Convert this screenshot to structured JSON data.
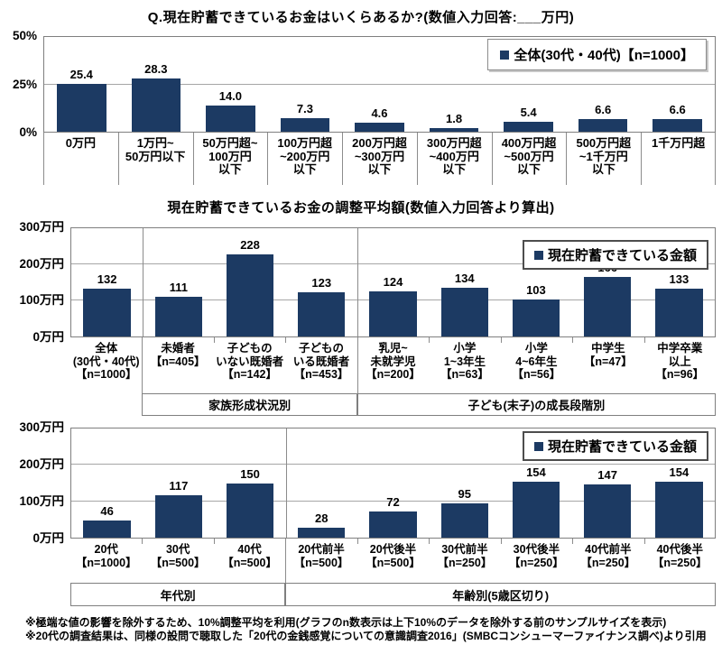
{
  "colors": {
    "bar": "#1c3a63",
    "grid": "#a6a6a6",
    "axis": "#7f7f7f"
  },
  "footnotes": [
    "※極端な値の影響を除外するため、10%調整平均を利用(グラフのn数表示は上下10%のデータを除外する前のサンプルサイズを表示)",
    "※20代の調査結果は、同様の設問で聴取した「20代の金銭感覚についての意識調査2016」(SMBCコンシューマーファイナンス調べ)より引用"
  ],
  "chart_data": [
    {
      "type": "bar",
      "title": "Q.現在貯蓄できているお金はいくらあるか?(数値入力回答:___万円)",
      "legend": "全体(30代・40代)【n=1000】",
      "ylim": [
        0,
        50
      ],
      "yticks": [
        {
          "v": 50,
          "label": "50%"
        },
        {
          "v": 25,
          "label": "25%"
        },
        {
          "v": 0,
          "label": "0%"
        }
      ],
      "categories": [
        [
          "0万円"
        ],
        [
          "1万円~",
          "50万円以下"
        ],
        [
          "50万円超~",
          "100万円",
          "以下"
        ],
        [
          "100万円超",
          "~200万円",
          "以下"
        ],
        [
          "200万円超",
          "~300万円",
          "以下"
        ],
        [
          "300万円超",
          "~400万円",
          "以下"
        ],
        [
          "400万円超",
          "~500万円",
          "以下"
        ],
        [
          "500万円超",
          "~1千万円",
          "以下"
        ],
        [
          "1千万円超"
        ]
      ],
      "values": [
        25.4,
        28.3,
        14.0,
        7.3,
        4.6,
        1.8,
        5.4,
        6.6,
        6.6
      ],
      "value_labels": [
        "25.4",
        "28.3",
        "14.0",
        "7.3",
        "4.6",
        "1.8",
        "5.4",
        "6.6",
        "6.6"
      ],
      "groups": [],
      "group_dividers": []
    },
    {
      "type": "bar",
      "title": "現在貯蓄できているお金の調整平均額(数値入力回答より算出)",
      "legend": "現在貯蓄できている金額",
      "ylim": [
        0,
        300
      ],
      "yticks": [
        {
          "v": 300,
          "label": "300万円"
        },
        {
          "v": 200,
          "label": "200万円"
        },
        {
          "v": 100,
          "label": "100万円"
        },
        {
          "v": 0,
          "label": "0万円"
        }
      ],
      "categories": [
        [
          "全体",
          "(30代・40代)",
          "【n=1000】"
        ],
        [
          "未婚者",
          "【n=405】"
        ],
        [
          "子どもの",
          "いない既婚者",
          "【n=142】"
        ],
        [
          "子どもの",
          "いる既婚者",
          "【n=453】"
        ],
        [
          "乳児~",
          "未就学児",
          "【n=200】"
        ],
        [
          "小学",
          "1~3年生",
          "【n=63】"
        ],
        [
          "小学",
          "4~6年生",
          "【n=56】"
        ],
        [
          "中学生",
          "【n=47】"
        ],
        [
          "中学卒業",
          "以上",
          "【n=96】"
        ]
      ],
      "values": [
        132,
        111,
        228,
        123,
        124,
        134,
        103,
        166,
        133
      ],
      "value_labels": [
        "132",
        "111",
        "228",
        "123",
        "124",
        "134",
        "103",
        "166",
        "133"
      ],
      "groups": [
        {
          "label": "家族形成状況別",
          "start": 1,
          "span": 3
        },
        {
          "label": "子ども(末子)の成長段階別",
          "start": 4,
          "span": 5
        }
      ],
      "group_dividers": [
        1,
        4
      ]
    },
    {
      "type": "bar",
      "title": "",
      "legend": "現在貯蓄できている金額",
      "ylim": [
        0,
        300
      ],
      "yticks": [
        {
          "v": 300,
          "label": "300万円"
        },
        {
          "v": 200,
          "label": "200万円"
        },
        {
          "v": 100,
          "label": "100万円"
        },
        {
          "v": 0,
          "label": "0万円"
        }
      ],
      "categories": [
        [
          "20代",
          "【n=1000】"
        ],
        [
          "30代",
          "【n=500】"
        ],
        [
          "40代",
          "【n=500】"
        ],
        [
          "20代前半",
          "【n=500】"
        ],
        [
          "20代後半",
          "【n=500】"
        ],
        [
          "30代前半",
          "【n=250】"
        ],
        [
          "30代後半",
          "【n=250】"
        ],
        [
          "40代前半",
          "【n=250】"
        ],
        [
          "40代後半",
          "【n=250】"
        ]
      ],
      "values": [
        46,
        117,
        150,
        28,
        72,
        95,
        154,
        147,
        154
      ],
      "value_labels": [
        "46",
        "117",
        "150",
        "28",
        "72",
        "95",
        "154",
        "147",
        "154"
      ],
      "groups": [
        {
          "label": "年代別",
          "start": 0,
          "span": 3
        },
        {
          "label": "年齢別(5歳区切り)",
          "start": 3,
          "span": 6
        }
      ],
      "group_dividers": [
        3
      ]
    }
  ]
}
